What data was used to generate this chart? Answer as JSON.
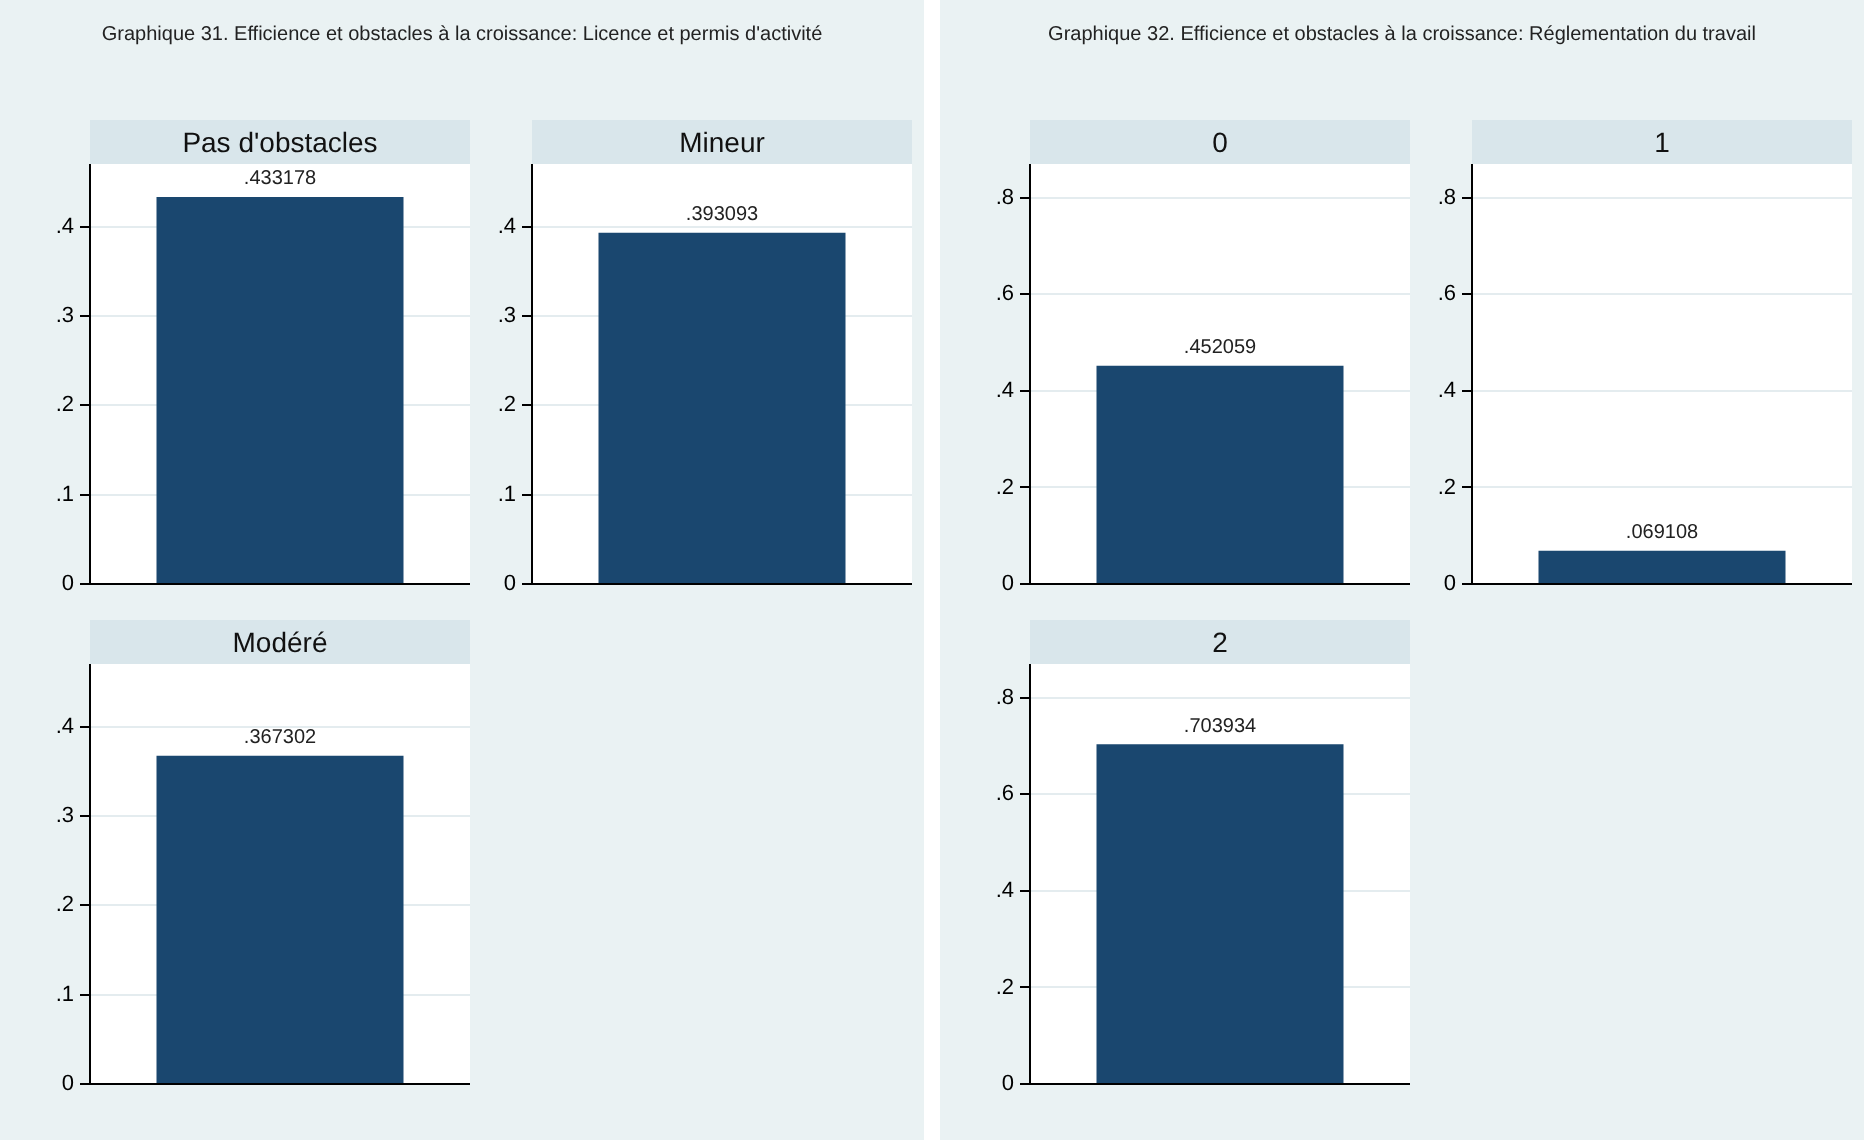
{
  "chart_data": [
    {
      "type": "bar",
      "title": "Pas d'obstacles",
      "annotations": [
        "Graphique 31. Efficience et obstacles à la croissance: Licence et permis d'activité"
      ],
      "categories": [
        null
      ],
      "values": [
        0.433178
      ],
      "value_labels": [
        ".433178"
      ],
      "color": "#1a476f",
      "ylim": [
        0,
        0.47
      ],
      "yticks": [
        {
          "value": 0,
          "label": "0"
        },
        {
          "value": 0.1,
          "label": ".1"
        },
        {
          "value": 0.2,
          "label": ".2"
        },
        {
          "value": 0.3,
          "label": ".3"
        },
        {
          "value": 0.4,
          "label": ".4"
        }
      ],
      "grid": "y",
      "tick_labels": "y"
    },
    {
      "type": "bar",
      "title": "Mineur",
      "categories": [
        null
      ],
      "values": [
        0.393093
      ],
      "value_labels": [
        ".393093"
      ],
      "color": "#1a476f",
      "ylim": [
        0,
        0.47
      ],
      "yticks": [
        {
          "value": 0,
          "label": "0"
        },
        {
          "value": 0.1,
          "label": ".1"
        },
        {
          "value": 0.2,
          "label": ".2"
        },
        {
          "value": 0.3,
          "label": ".3"
        },
        {
          "value": 0.4,
          "label": ".4"
        }
      ],
      "grid": "y",
      "tick_labels": "y"
    },
    {
      "type": "bar",
      "title": "Modéré",
      "categories": [
        null
      ],
      "values": [
        0.367302
      ],
      "value_labels": [
        ".367302"
      ],
      "color": "#1a476f",
      "ylim": [
        0,
        0.47
      ],
      "yticks": [
        {
          "value": 0,
          "label": "0"
        },
        {
          "value": 0.1,
          "label": ".1"
        },
        {
          "value": 0.2,
          "label": ".2"
        },
        {
          "value": 0.3,
          "label": ".3"
        },
        {
          "value": 0.4,
          "label": ".4"
        }
      ],
      "grid": "y",
      "tick_labels": "y"
    },
    {
      "type": "bar",
      "title": "0",
      "annotations": [
        "Graphique 32. Efficience et obstacles à la croissance: Réglementation du travail"
      ],
      "categories": [
        null
      ],
      "values": [
        0.452059
      ],
      "value_labels": [
        ".452059"
      ],
      "color": "#1a476f",
      "ylim": [
        0,
        0.87
      ],
      "yticks": [
        {
          "value": 0,
          "label": "0"
        },
        {
          "value": 0.2,
          "label": ".2"
        },
        {
          "value": 0.4,
          "label": ".4"
        },
        {
          "value": 0.6,
          "label": ".6"
        },
        {
          "value": 0.8,
          "label": ".8"
        }
      ],
      "grid": "y",
      "tick_labels": "y"
    },
    {
      "type": "bar",
      "title": "1",
      "categories": [
        null
      ],
      "values": [
        0.069108
      ],
      "value_labels": [
        ".069108"
      ],
      "color": "#1a476f",
      "ylim": [
        0,
        0.87
      ],
      "yticks": [
        {
          "value": 0,
          "label": "0"
        },
        {
          "value": 0.2,
          "label": ".2"
        },
        {
          "value": 0.4,
          "label": ".4"
        },
        {
          "value": 0.6,
          "label": ".6"
        },
        {
          "value": 0.8,
          "label": ".8"
        }
      ],
      "grid": "y",
      "tick_labels": "y"
    },
    {
      "type": "bar",
      "title": "2",
      "categories": [
        null
      ],
      "values": [
        0.703934
      ],
      "value_labels": [
        ".703934"
      ],
      "color": "#1a476f",
      "ylim": [
        0,
        0.87
      ],
      "yticks": [
        {
          "value": 0,
          "label": "0"
        },
        {
          "value": 0.2,
          "label": ".2"
        },
        {
          "value": 0.4,
          "label": ".4"
        },
        {
          "value": 0.6,
          "label": ".6"
        },
        {
          "value": 0.8,
          "label": ".8"
        }
      ],
      "grid": "y",
      "tick_labels": "y"
    }
  ]
}
